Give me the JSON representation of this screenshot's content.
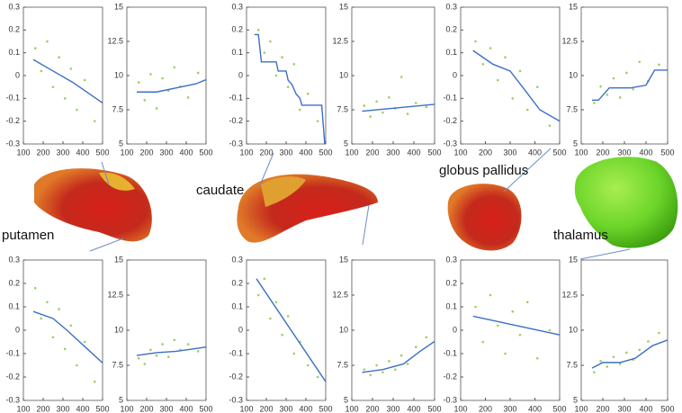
{
  "chart_data": [
    {
      "type": "scatter",
      "xlim": [
        100,
        500
      ],
      "xticks": [
        100,
        200,
        300,
        400,
        500
      ],
      "ylim": [
        -0.3,
        0.3
      ],
      "yticks": [
        -0.3,
        -0.2,
        -0.1,
        0,
        0.1,
        0.2,
        0.3
      ],
      "point_color": "#9ccf62",
      "line_color": "#3b6fc6",
      "points": {
        "x": [
          160,
          190,
          220,
          250,
          280,
          310,
          340,
          370,
          410,
          460
        ],
        "y": [
          0.12,
          0.02,
          0.15,
          -0.05,
          0.08,
          -0.1,
          0.03,
          -0.15,
          -0.02,
          -0.2
        ]
      },
      "fit": {
        "x": [
          150,
          250,
          350,
          450,
          500
        ],
        "y": [
          0.07,
          0.02,
          -0.03,
          -0.09,
          -0.12
        ]
      }
    },
    {
      "type": "scatter",
      "xlim": [
        100,
        500
      ],
      "xticks": [
        100,
        200,
        300,
        400,
        500
      ],
      "ylim": [
        5,
        15
      ],
      "yticks": [
        5,
        7.5,
        10,
        12.5,
        15
      ],
      "point_color": "#9ccf62",
      "line_color": "#3b6fc6",
      "points": {
        "x": [
          160,
          190,
          220,
          250,
          280,
          310,
          340,
          370,
          410,
          460
        ],
        "y": [
          9.5,
          8.2,
          10.1,
          7.6,
          9.8,
          8.9,
          10.6,
          9.2,
          8.4,
          10.2
        ]
      },
      "fit": {
        "x": [
          150,
          250,
          350,
          450,
          500
        ],
        "y": [
          8.8,
          8.8,
          9.1,
          9.4,
          9.7
        ]
      }
    },
    {
      "type": "scatter",
      "xlim": [
        100,
        500
      ],
      "xticks": [
        100,
        200,
        300,
        400,
        500
      ],
      "ylim": [
        -0.3,
        0.3
      ],
      "yticks": [
        -0.3,
        -0.2,
        -0.1,
        0,
        0.1,
        0.2,
        0.3
      ],
      "point_color": "#9ccf62",
      "line_color": "#3b6fc6",
      "points": {
        "x": [
          160,
          190,
          220,
          250,
          280,
          310,
          340,
          370,
          410,
          460
        ],
        "y": [
          0.2,
          0.1,
          0.15,
          0.0,
          0.08,
          -0.05,
          0.05,
          -0.15,
          -0.08,
          -0.2
        ]
      },
      "fit": {
        "x": [
          140,
          160,
          175,
          250,
          260,
          300,
          310,
          330,
          350,
          370,
          380,
          480,
          495
        ],
        "y": [
          0.18,
          0.18,
          0.06,
          0.06,
          0.02,
          0.02,
          -0.02,
          -0.04,
          -0.08,
          -0.1,
          -0.13,
          -0.13,
          -0.3
        ]
      }
    },
    {
      "type": "scatter",
      "xlim": [
        100,
        500
      ],
      "xticks": [
        100,
        200,
        300,
        400,
        500
      ],
      "ylim": [
        5,
        15
      ],
      "yticks": [
        5,
        7.5,
        10,
        12.5,
        15
      ],
      "point_color": "#9ccf62",
      "line_color": "#3b6fc6",
      "points": {
        "x": [
          160,
          190,
          220,
          250,
          280,
          310,
          340,
          370,
          410,
          460
        ],
        "y": [
          7.8,
          7.0,
          8.1,
          7.3,
          8.4,
          7.6,
          9.9,
          7.2,
          8.0,
          7.7
        ]
      },
      "fit": {
        "x": [
          150,
          500
        ],
        "y": [
          7.4,
          7.9
        ]
      }
    },
    {
      "type": "scatter",
      "xlim": [
        100,
        500
      ],
      "xticks": [
        100,
        200,
        300,
        400,
        500
      ],
      "ylim": [
        -0.3,
        0.3
      ],
      "yticks": [
        -0.3,
        -0.2,
        -0.1,
        0,
        0.1,
        0.2,
        0.3
      ],
      "point_color": "#9ccf62",
      "line_color": "#3b6fc6",
      "points": {
        "x": [
          160,
          190,
          220,
          250,
          280,
          310,
          340,
          370,
          410,
          460
        ],
        "y": [
          0.15,
          0.05,
          0.12,
          -0.02,
          0.08,
          -0.1,
          0.02,
          -0.15,
          -0.05,
          -0.22
        ]
      },
      "fit": {
        "x": [
          150,
          230,
          300,
          350,
          420,
          500
        ],
        "y": [
          0.11,
          0.05,
          0.02,
          -0.05,
          -0.15,
          -0.2
        ]
      }
    },
    {
      "type": "scatter",
      "xlim": [
        100,
        500
      ],
      "xticks": [
        100,
        200,
        300,
        400,
        500
      ],
      "ylim": [
        5,
        15
      ],
      "yticks": [
        5,
        7.5,
        10,
        12.5,
        15
      ],
      "point_color": "#9ccf62",
      "line_color": "#3b6fc6",
      "points": {
        "x": [
          160,
          190,
          220,
          250,
          280,
          310,
          340,
          370,
          410,
          460
        ],
        "y": [
          8.0,
          9.2,
          8.6,
          9.8,
          8.4,
          10.2,
          9.0,
          11.0,
          9.6,
          10.8
        ]
      },
      "fit": {
        "x": [
          150,
          180,
          230,
          330,
          400,
          440,
          500
        ],
        "y": [
          8.2,
          8.2,
          9.1,
          9.1,
          9.3,
          10.4,
          10.4
        ]
      }
    },
    {
      "type": "scatter",
      "xlim": [
        100,
        500
      ],
      "xticks": [
        100,
        200,
        300,
        400,
        500
      ],
      "ylim": [
        -0.3,
        0.3
      ],
      "yticks": [
        -0.3,
        -0.2,
        -0.1,
        0,
        0.1,
        0.2,
        0.3
      ],
      "point_color": "#9ccf62",
      "line_color": "#3b6fc6",
      "points": {
        "x": [
          160,
          190,
          220,
          250,
          280,
          310,
          340,
          370,
          410,
          460
        ],
        "y": [
          0.18,
          0.05,
          0.12,
          -0.03,
          0.09,
          -0.08,
          0.02,
          -0.15,
          -0.05,
          -0.22
        ]
      },
      "fit": {
        "x": [
          150,
          250,
          320,
          410,
          500
        ],
        "y": [
          0.08,
          0.05,
          0.0,
          -0.07,
          -0.14
        ]
      }
    },
    {
      "type": "scatter",
      "xlim": [
        100,
        500
      ],
      "xticks": [
        100,
        200,
        300,
        400,
        500
      ],
      "ylim": [
        5,
        15
      ],
      "yticks": [
        5,
        7.5,
        10,
        12.5,
        15
      ],
      "point_color": "#9ccf62",
      "line_color": "#3b6fc6",
      "points": {
        "x": [
          160,
          190,
          220,
          250,
          280,
          310,
          340,
          370,
          410,
          460
        ],
        "y": [
          8.0,
          7.6,
          8.6,
          8.2,
          9.0,
          8.1,
          9.3,
          8.6,
          9.0,
          8.5
        ]
      },
      "fit": {
        "x": [
          150,
          250,
          350,
          450,
          500
        ],
        "y": [
          8.2,
          8.4,
          8.5,
          8.7,
          8.8
        ]
      }
    },
    {
      "type": "scatter",
      "xlim": [
        100,
        500
      ],
      "xticks": [
        100,
        200,
        300,
        400,
        500
      ],
      "ylim": [
        -0.3,
        0.3
      ],
      "yticks": [
        -0.3,
        -0.2,
        -0.1,
        0,
        0.1,
        0.2,
        0.3
      ],
      "point_color": "#9ccf62",
      "line_color": "#3b6fc6",
      "points": {
        "x": [
          160,
          190,
          220,
          250,
          280,
          310,
          340,
          370,
          410,
          460
        ],
        "y": [
          0.15,
          0.22,
          0.05,
          0.12,
          -0.02,
          0.06,
          -0.1,
          -0.05,
          -0.15,
          -0.2
        ]
      },
      "fit": {
        "x": [
          150,
          500
        ],
        "y": [
          0.22,
          -0.22
        ]
      }
    },
    {
      "type": "scatter",
      "xlim": [
        100,
        500
      ],
      "xticks": [
        100,
        200,
        300,
        400,
        500
      ],
      "ylim": [
        5,
        15
      ],
      "yticks": [
        5,
        7.5,
        10,
        12.5,
        15
      ],
      "point_color": "#9ccf62",
      "line_color": "#3b6fc6",
      "points": {
        "x": [
          160,
          190,
          220,
          250,
          280,
          310,
          340,
          370,
          410,
          460
        ],
        "y": [
          7.2,
          6.8,
          7.5,
          7.0,
          7.8,
          7.2,
          8.2,
          7.6,
          8.8,
          9.5
        ]
      },
      "fit": {
        "x": [
          150,
          250,
          350,
          430,
          500
        ],
        "y": [
          7.0,
          7.2,
          7.6,
          8.5,
          9.2
        ]
      }
    },
    {
      "type": "scatter",
      "xlim": [
        100,
        500
      ],
      "xticks": [
        100,
        200,
        300,
        400,
        500
      ],
      "ylim": [
        -0.3,
        0.3
      ],
      "yticks": [
        -0.3,
        -0.2,
        -0.1,
        0,
        0.1,
        0.2,
        0.3
      ],
      "point_color": "#9ccf62",
      "line_color": "#3b6fc6",
      "points": {
        "x": [
          160,
          190,
          220,
          250,
          280,
          310,
          340,
          370,
          410,
          460
        ],
        "y": [
          0.1,
          -0.05,
          0.15,
          0.02,
          -0.1,
          0.08,
          -0.02,
          0.12,
          -0.12,
          0.0
        ]
      },
      "fit": {
        "x": [
          150,
          500
        ],
        "y": [
          0.06,
          -0.02
        ]
      }
    },
    {
      "type": "scatter",
      "xlim": [
        100,
        500
      ],
      "xticks": [
        100,
        200,
        300,
        400,
        500
      ],
      "ylim": [
        5,
        15
      ],
      "yticks": [
        5,
        7.5,
        10,
        12.5,
        15
      ],
      "point_color": "#9ccf62",
      "line_color": "#3b6fc6",
      "points": {
        "x": [
          160,
          190,
          220,
          250,
          280,
          310,
          340,
          370,
          410,
          460
        ],
        "y": [
          7.0,
          7.8,
          7.4,
          8.1,
          7.6,
          8.4,
          7.9,
          8.6,
          9.2,
          9.8
        ]
      },
      "fit": {
        "x": [
          150,
          200,
          280,
          350,
          430,
          500
        ],
        "y": [
          7.3,
          7.7,
          7.7,
          8.0,
          8.9,
          9.3
        ]
      }
    }
  ],
  "structures": [
    {
      "label": "putamen"
    },
    {
      "label": "caudate"
    },
    {
      "label": "globus pallidus"
    },
    {
      "label": "thalamus"
    }
  ]
}
